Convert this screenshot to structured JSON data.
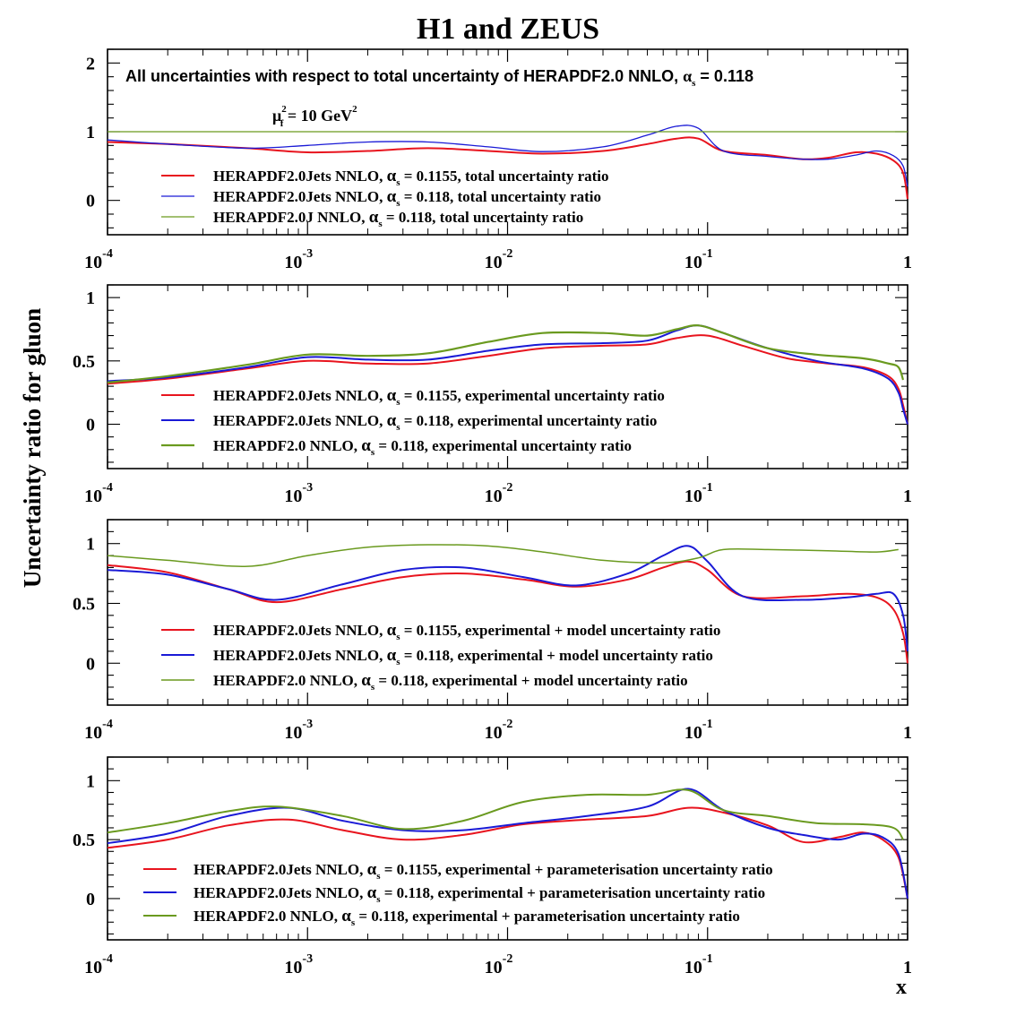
{
  "figure": {
    "title": "H1 and ZEUS",
    "ylabel": "Uncertainty ratio for gluon",
    "xlabel": "x",
    "annotation_pre": "All uncertainties with respect to total uncertainty of  HERAPDF2.0 NNLO, ",
    "annotation_alpha": "α",
    "annotation_sub": "s",
    "annotation_post": " = 0.118",
    "scale_mu": "μ",
    "scale_sup": "2",
    "scale_sub": "f",
    "scale_eq": " = 10 GeV",
    "scale_unit_sup": "2"
  },
  "colors": {
    "red": "#e8141e",
    "blue": "#1a1ad6",
    "green": "#6a9a1f"
  },
  "x_ticks": [
    {
      "base": "10",
      "exp": "-4"
    },
    {
      "base": "10",
      "exp": "-3"
    },
    {
      "base": "10",
      "exp": "-2"
    },
    {
      "base": "10",
      "exp": "-1"
    },
    {
      "base": "1",
      "exp": ""
    }
  ],
  "chart_data": [
    {
      "type": "line",
      "xscale": "log",
      "xlim": [
        0.0001,
        1
      ],
      "ylim": [
        -0.5,
        2.2
      ],
      "yticks": [
        "0",
        "1",
        "2"
      ],
      "series": [
        {
          "name": "HERAPDF2.0Jets NNLO, α_s = 0.1155, total uncertainty ratio",
          "color": "red",
          "legend_pre": "HERAPDF2.0Jets NNLO, ",
          "legend_post": " = 0.1155, total uncertainty ratio",
          "x": [
            0.0001,
            0.0002,
            0.0005,
            0.001,
            0.002,
            0.004,
            0.008,
            0.015,
            0.03,
            0.05,
            0.07,
            0.09,
            0.12,
            0.2,
            0.3,
            0.4,
            0.55,
            0.7,
            0.85,
            0.95,
            1.0
          ],
          "y": [
            0.85,
            0.82,
            0.76,
            0.7,
            0.72,
            0.76,
            0.72,
            0.68,
            0.72,
            0.82,
            0.9,
            0.9,
            0.72,
            0.66,
            0.6,
            0.62,
            0.7,
            0.68,
            0.58,
            0.4,
            0.02
          ]
        },
        {
          "name": "HERAPDF2.0Jets NNLO, α_s = 0.118, total uncertainty ratio",
          "color": "blue",
          "legend_pre": "HERAPDF2.0Jets NNLO, ",
          "legend_post": " = 0.118, total uncertainty ratio",
          "x": [
            0.0001,
            0.0002,
            0.0005,
            0.001,
            0.002,
            0.004,
            0.008,
            0.015,
            0.03,
            0.05,
            0.07,
            0.09,
            0.12,
            0.2,
            0.3,
            0.4,
            0.55,
            0.7,
            0.85,
            0.95,
            1.0
          ],
          "y": [
            0.88,
            0.82,
            0.76,
            0.8,
            0.85,
            0.85,
            0.78,
            0.71,
            0.78,
            0.95,
            1.08,
            1.05,
            0.72,
            0.64,
            0.6,
            0.6,
            0.66,
            0.72,
            0.65,
            0.5,
            0.2
          ]
        },
        {
          "name": "HERAPDF2.0J NNLO, α_s = 0.118, total uncertainty ratio",
          "color": "green",
          "legend_pre": "HERAPDF2.0J NNLO, ",
          "legend_post": " = 0.118, total uncertainty ratio",
          "x": [
            0.0001,
            1.0
          ],
          "y": [
            1.0,
            1.0
          ]
        }
      ]
    },
    {
      "type": "line",
      "xscale": "log",
      "xlim": [
        0.0001,
        1
      ],
      "ylim": [
        -0.35,
        1.1
      ],
      "yticks": [
        "0",
        "0.5",
        "1"
      ],
      "series": [
        {
          "name": "HERAPDF2.0Jets NNLO, α_s = 0.1155, experimental uncertainty ratio",
          "color": "red",
          "legend_pre": "HERAPDF2.0Jets NNLO, ",
          "legend_post": " = 0.1155, experimental uncertainty ratio",
          "x": [
            0.0001,
            0.0002,
            0.0005,
            0.001,
            0.002,
            0.004,
            0.008,
            0.015,
            0.03,
            0.05,
            0.07,
            0.1,
            0.15,
            0.25,
            0.4,
            0.6,
            0.8,
            0.9,
            0.95,
            1.0
          ],
          "y": [
            0.32,
            0.36,
            0.44,
            0.5,
            0.48,
            0.48,
            0.54,
            0.6,
            0.62,
            0.63,
            0.68,
            0.7,
            0.62,
            0.52,
            0.48,
            0.45,
            0.38,
            0.28,
            0.15,
            0.0
          ]
        },
        {
          "name": "HERAPDF2.0Jets NNLO, α_s = 0.118, experimental uncertainty ratio",
          "color": "blue",
          "legend_pre": "HERAPDF2.0Jets NNLO, ",
          "legend_post": " = 0.118, experimental uncertainty ratio",
          "x": [
            0.0001,
            0.0002,
            0.0005,
            0.001,
            0.002,
            0.004,
            0.008,
            0.015,
            0.03,
            0.05,
            0.07,
            0.09,
            0.12,
            0.2,
            0.35,
            0.6,
            0.8,
            0.9,
            0.95,
            1.0
          ],
          "y": [
            0.34,
            0.37,
            0.45,
            0.53,
            0.51,
            0.51,
            0.58,
            0.63,
            0.64,
            0.66,
            0.74,
            0.78,
            0.72,
            0.6,
            0.5,
            0.44,
            0.36,
            0.25,
            0.12,
            0.0
          ]
        },
        {
          "name": "HERAPDF2.0 NNLO, α_s = 0.118, experimental uncertainty ratio",
          "color": "green",
          "legend_pre": "HERAPDF2.0 NNLO, ",
          "legend_post": " = 0.118, experimental uncertainty ratio",
          "x": [
            0.0001,
            0.0002,
            0.0005,
            0.001,
            0.002,
            0.004,
            0.008,
            0.015,
            0.03,
            0.05,
            0.07,
            0.09,
            0.12,
            0.2,
            0.35,
            0.6,
            0.8,
            0.9,
            0.95
          ],
          "y": [
            0.33,
            0.38,
            0.47,
            0.55,
            0.54,
            0.56,
            0.65,
            0.72,
            0.72,
            0.7,
            0.75,
            0.78,
            0.72,
            0.6,
            0.55,
            0.52,
            0.48,
            0.45,
            0.35
          ]
        }
      ]
    },
    {
      "type": "line",
      "xscale": "log",
      "xlim": [
        0.0001,
        1
      ],
      "ylim": [
        -0.35,
        1.2
      ],
      "yticks": [
        "0",
        "0.5",
        "1"
      ],
      "series": [
        {
          "name": "HERAPDF2.0Jets NNLO, α_s = 0.1155, experimental + model uncertainty ratio",
          "color": "red",
          "legend_pre": "HERAPDF2.0Jets NNLO, ",
          "legend_post": " = 0.1155, experimental + model uncertainty ratio",
          "x": [
            0.0001,
            0.0002,
            0.0004,
            0.0007,
            0.0015,
            0.003,
            0.006,
            0.012,
            0.022,
            0.04,
            0.06,
            0.08,
            0.1,
            0.15,
            0.3,
            0.5,
            0.7,
            0.85,
            0.95,
            1.0
          ],
          "y": [
            0.82,
            0.76,
            0.62,
            0.51,
            0.62,
            0.72,
            0.75,
            0.7,
            0.64,
            0.7,
            0.8,
            0.85,
            0.78,
            0.56,
            0.56,
            0.58,
            0.55,
            0.45,
            0.25,
            0.0
          ]
        },
        {
          "name": "HERAPDF2.0Jets NNLO, α_s = 0.118, experimental + model uncertainty ratio",
          "color": "blue",
          "legend_pre": "HERAPDF2.0Jets NNLO, ",
          "legend_post": " = 0.118, experimental + model uncertainty ratio",
          "x": [
            0.0001,
            0.0002,
            0.0004,
            0.0007,
            0.0015,
            0.003,
            0.006,
            0.012,
            0.022,
            0.04,
            0.06,
            0.08,
            0.1,
            0.15,
            0.3,
            0.5,
            0.7,
            0.85,
            0.95,
            1.0
          ],
          "y": [
            0.78,
            0.74,
            0.62,
            0.53,
            0.66,
            0.78,
            0.8,
            0.72,
            0.65,
            0.75,
            0.9,
            0.98,
            0.85,
            0.56,
            0.53,
            0.55,
            0.58,
            0.58,
            0.4,
            0.1
          ]
        },
        {
          "name": "HERAPDF2.0 NNLO, α_s = 0.118, experimental + model uncertainty ratio",
          "color": "green",
          "legend_pre": "HERAPDF2.0 NNLO, ",
          "legend_post": " = 0.118, experimental + model uncertainty ratio",
          "x": [
            0.0001,
            0.0002,
            0.0005,
            0.001,
            0.002,
            0.004,
            0.008,
            0.015,
            0.03,
            0.06,
            0.09,
            0.12,
            0.2,
            0.4,
            0.7,
            0.9
          ],
          "y": [
            0.9,
            0.86,
            0.81,
            0.9,
            0.97,
            0.99,
            0.98,
            0.93,
            0.86,
            0.84,
            0.88,
            0.95,
            0.95,
            0.94,
            0.93,
            0.95
          ]
        }
      ]
    },
    {
      "type": "line",
      "xscale": "log",
      "xlim": [
        0.0001,
        1
      ],
      "ylim": [
        -0.35,
        1.2
      ],
      "yticks": [
        "0",
        "0.5",
        "1"
      ],
      "series": [
        {
          "name": "HERAPDF2.0Jets NNLO, α_s = 0.1155, experimental + parameterisation uncertainty ratio",
          "color": "red",
          "legend_pre": "HERAPDF2.0Jets NNLO, ",
          "legend_post": " = 0.1155, experimental + parameterisation uncertainty ratio",
          "x": [
            0.0001,
            0.0002,
            0.0004,
            0.0008,
            0.0015,
            0.003,
            0.006,
            0.012,
            0.025,
            0.05,
            0.08,
            0.12,
            0.2,
            0.3,
            0.45,
            0.6,
            0.75,
            0.9,
            1.0
          ],
          "y": [
            0.43,
            0.5,
            0.62,
            0.67,
            0.58,
            0.5,
            0.54,
            0.63,
            0.67,
            0.7,
            0.77,
            0.73,
            0.62,
            0.48,
            0.52,
            0.56,
            0.5,
            0.35,
            0.0
          ]
        },
        {
          "name": "HERAPDF2.0Jets NNLO, α_s = 0.118, experimental + parameterisation uncertainty ratio",
          "color": "blue",
          "legend_pre": "HERAPDF2.0Jets NNLO, ",
          "legend_post": " = 0.118, experimental + parameterisation uncertainty ratio",
          "x": [
            0.0001,
            0.0002,
            0.0004,
            0.0008,
            0.0015,
            0.003,
            0.006,
            0.012,
            0.025,
            0.05,
            0.08,
            0.12,
            0.2,
            0.3,
            0.45,
            0.6,
            0.75,
            0.9,
            1.0
          ],
          "y": [
            0.47,
            0.55,
            0.7,
            0.77,
            0.66,
            0.58,
            0.58,
            0.64,
            0.7,
            0.78,
            0.93,
            0.75,
            0.6,
            0.54,
            0.5,
            0.55,
            0.52,
            0.38,
            0.0
          ]
        },
        {
          "name": "HERAPDF2.0 NNLO, α_s = 0.118, experimental + parameterisation uncertainty ratio",
          "color": "green",
          "legend_pre": "HERAPDF2.0 NNLO, ",
          "legend_post": " = 0.118, experimental + parameterisation uncertainty ratio",
          "x": [
            0.0001,
            0.0002,
            0.0004,
            0.0007,
            0.0015,
            0.003,
            0.006,
            0.012,
            0.025,
            0.05,
            0.08,
            0.12,
            0.2,
            0.35,
            0.6,
            0.85,
            0.95
          ],
          "y": [
            0.56,
            0.64,
            0.74,
            0.78,
            0.7,
            0.59,
            0.66,
            0.82,
            0.88,
            0.88,
            0.92,
            0.75,
            0.7,
            0.64,
            0.63,
            0.6,
            0.5
          ]
        }
      ]
    }
  ]
}
